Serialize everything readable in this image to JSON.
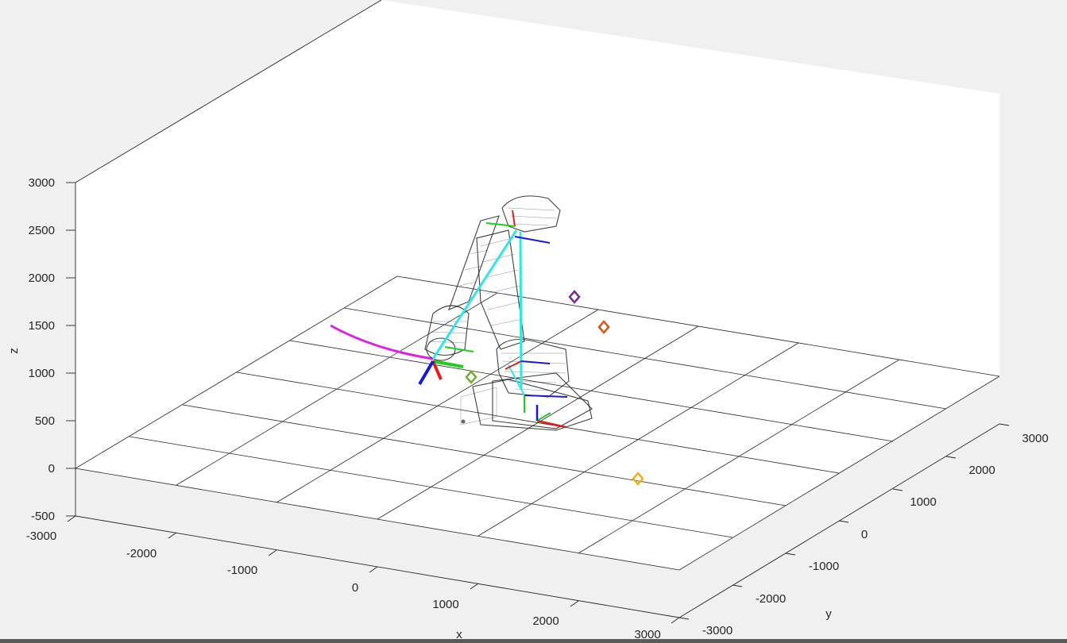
{
  "figure": {
    "z_label": "z",
    "x_label": "x",
    "y_label": "y",
    "z_ticks": [
      "3000",
      "2500",
      "2000",
      "1500",
      "1000",
      "500",
      "0",
      "-500"
    ],
    "x_ticks": [
      "-3000",
      "-2000",
      "-1000",
      "0",
      "1000",
      "2000",
      "3000"
    ],
    "y_ticks": [
      "-3000",
      "-2000",
      "-1000",
      "0",
      "1000",
      "2000",
      "3000"
    ]
  },
  "colors": {
    "trajectory": "#e020e0",
    "link_frame": "#33e6e6",
    "x_axis": "#e02020",
    "y_axis": "#22cc22",
    "z_axis": "#1a1ad6",
    "markers": [
      "#7b2d8e",
      "#d95319",
      "#77ac30",
      "#edb120"
    ]
  },
  "objects": {
    "robot": "robot-arm-wireframe",
    "trajectory": "end-effector-path",
    "markers": [
      "marker-purple",
      "marker-orange",
      "marker-green",
      "marker-yellow"
    ]
  }
}
